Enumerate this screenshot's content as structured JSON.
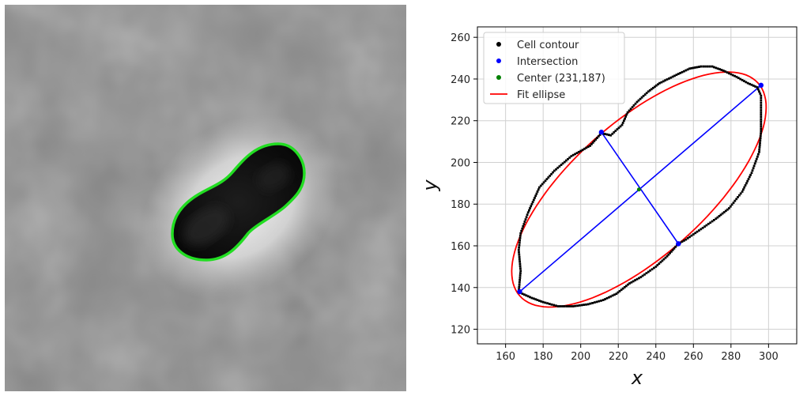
{
  "chart_data": [
    {
      "type": "image",
      "subject": "phase-contrast micrograph of a rod-shaped bacterial cell with its detected contour",
      "colors": {
        "contour": "#22dd22",
        "cell_interior": "#0d0d0d",
        "background": "#8a8a8a",
        "halo": "#e2e2e2"
      }
    },
    {
      "type": "scatter",
      "xlabel": "x",
      "ylabel": "y",
      "xlim": [
        145,
        315
      ],
      "ylim": [
        113,
        265
      ],
      "xticks": [
        160,
        180,
        200,
        220,
        240,
        260,
        280,
        300
      ],
      "yticks": [
        120,
        140,
        160,
        180,
        200,
        220,
        240,
        260
      ],
      "grid": true,
      "legend_position": "upper-left",
      "legend": [
        {
          "label": "Cell contour",
          "marker": "dot",
          "color": "#000000"
        },
        {
          "label": "Intersection",
          "marker": "dot",
          "color": "#0000ff"
        },
        {
          "label": "Center (231,187)",
          "marker": "dot",
          "color": "#008000"
        },
        {
          "label": "Fit ellipse",
          "marker": "line",
          "color": "#ff0000"
        }
      ],
      "series": {
        "cell_contour": {
          "color": "#000000",
          "points": [
            [
              167,
              138
            ],
            [
              168,
              148
            ],
            [
              167,
              158
            ],
            [
              168,
              166
            ],
            [
              172,
              176
            ],
            [
              178,
              188
            ],
            [
              186,
              196
            ],
            [
              195,
              203
            ],
            [
              205,
              208
            ],
            [
              211,
              214
            ],
            [
              216,
              213
            ],
            [
              222,
              218
            ],
            [
              225,
              224
            ],
            [
              230,
              229
            ],
            [
              236,
              234
            ],
            [
              242,
              238
            ],
            [
              251,
              242
            ],
            [
              258,
              245
            ],
            [
              264,
              246
            ],
            [
              270,
              246
            ],
            [
              276,
              244
            ],
            [
              283,
              241
            ],
            [
              289,
              238
            ],
            [
              294,
              236
            ],
            [
              296,
              232
            ],
            [
              296,
              225
            ],
            [
              296,
              215
            ],
            [
              295,
              205
            ],
            [
              291,
              195
            ],
            [
              286,
              186
            ],
            [
              279,
              178
            ],
            [
              272,
              173
            ],
            [
              264,
              168
            ],
            [
              256,
              163
            ],
            [
              252,
              161
            ],
            [
              246,
              155
            ],
            [
              240,
              150
            ],
            [
              232,
              145
            ],
            [
              226,
              142
            ],
            [
              219,
              137
            ],
            [
              212,
              134
            ],
            [
              204,
              132
            ],
            [
              196,
              131
            ],
            [
              188,
              131
            ],
            [
              180,
              133
            ],
            [
              174,
              135
            ],
            [
              169,
              137
            ],
            [
              167,
              138
            ]
          ]
        },
        "intersection": {
          "color": "#0000ff",
          "points": [
            [
              167.5,
              138
            ],
            [
              296,
              237
            ],
            [
              211,
              214.5
            ],
            [
              252,
              161
            ]
          ]
        },
        "center": {
          "color": "#008000",
          "point": [
            231,
            187
          ]
        },
        "fit_ellipse": {
          "color": "#ff0000",
          "center": [
            231,
            187
          ],
          "semi_major_axis": 81.5,
          "semi_minor_axis": 33.5,
          "angle_degrees": 37.6
        },
        "axis_lines": {
          "color": "#0000ff",
          "major": [
            [
              167.5,
              138
            ],
            [
              296,
              237
            ]
          ],
          "minor": [
            [
              211,
              214.5
            ],
            [
              252,
              161
            ]
          ]
        }
      }
    }
  ]
}
